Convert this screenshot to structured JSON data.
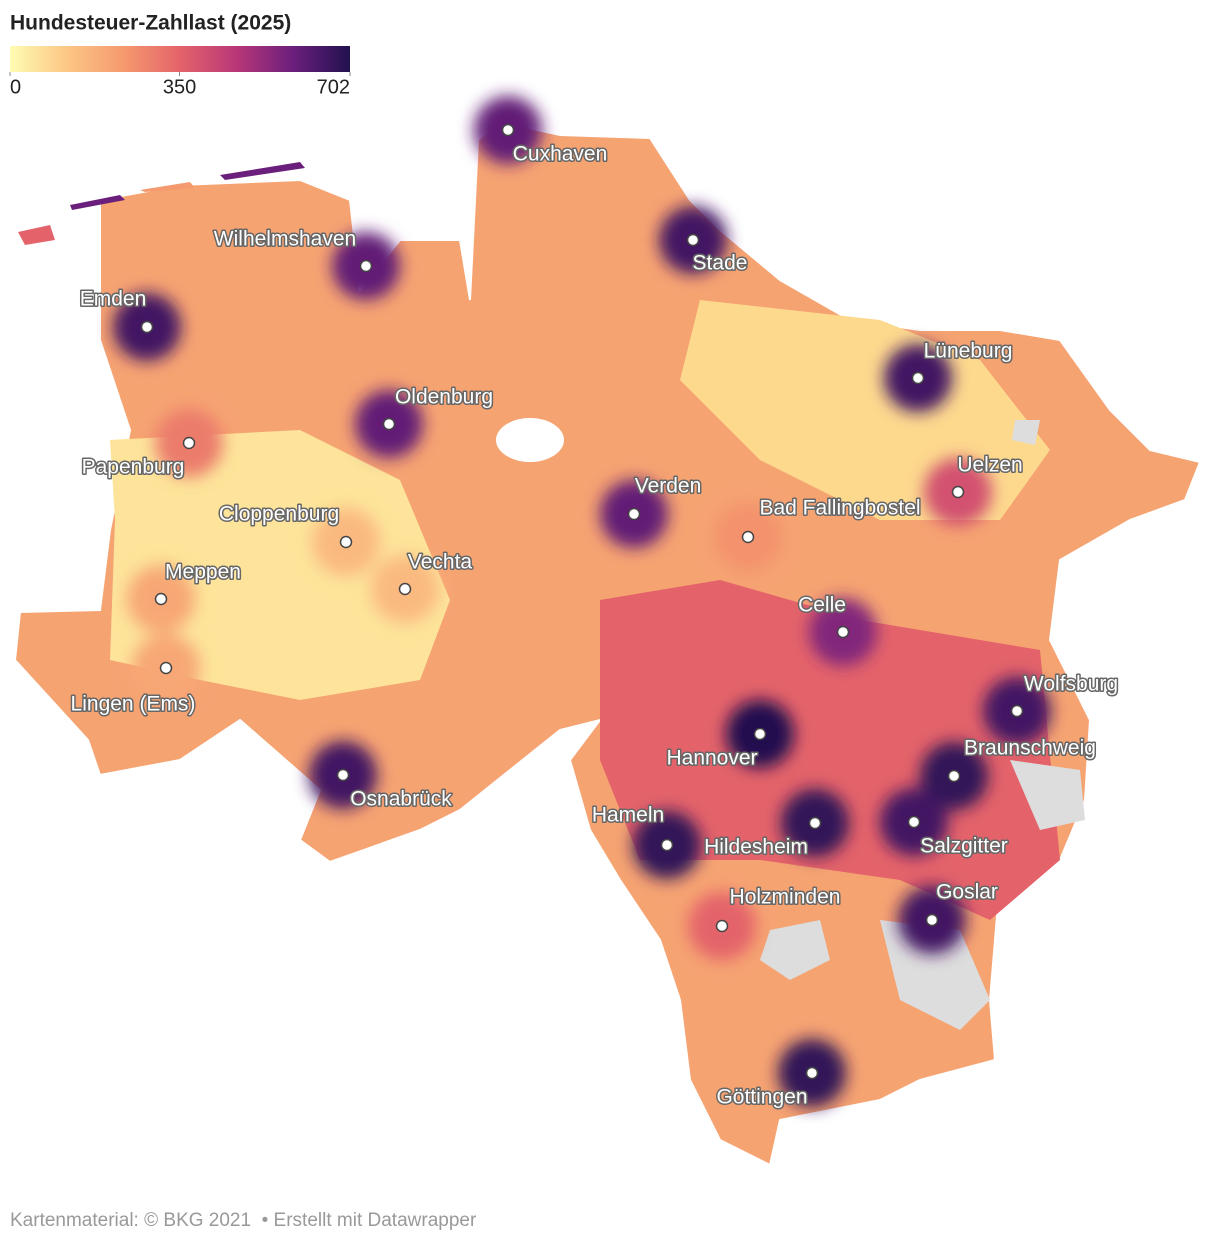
{
  "header": {
    "title": "Hundesteuer-Zahllast (2025)"
  },
  "legend": {
    "range": [
      0,
      702
    ],
    "ticks": [
      0,
      350,
      702
    ],
    "colors": [
      "#fefcb1",
      "#fcc785",
      "#f59a6e",
      "#e4636a",
      "#b83778",
      "#6b1f7c",
      "#221150"
    ]
  },
  "cities": [
    {
      "label": "Cuxhaven",
      "value": 600
    },
    {
      "label": "Wilhelmshaven",
      "value": 600
    },
    {
      "label": "Stade",
      "value": 650
    },
    {
      "label": "Emden",
      "value": 650
    },
    {
      "label": "Lüneburg",
      "value": 650
    },
    {
      "label": "Oldenburg",
      "value": 600
    },
    {
      "label": "Papenburg",
      "value": 300
    },
    {
      "label": "Uelzen",
      "value": 400
    },
    {
      "label": "Verden",
      "value": 600
    },
    {
      "label": "Bad Fallingbostel",
      "value": 250
    },
    {
      "label": "Cloppenburg",
      "value": 150
    },
    {
      "label": "Vechta",
      "value": 150
    },
    {
      "label": "Meppen",
      "value": 200
    },
    {
      "label": "Celle",
      "value": 550
    },
    {
      "label": "Lingen (Ems)",
      "value": 200
    },
    {
      "label": "Wolfsburg",
      "value": 650
    },
    {
      "label": "Hannover",
      "value": 702
    },
    {
      "label": "Braunschweig",
      "value": 680
    },
    {
      "label": "Osnabrück",
      "value": 650
    },
    {
      "label": "Hameln",
      "value": 680
    },
    {
      "label": "Hildesheim",
      "value": 680
    },
    {
      "label": "Salzgitter",
      "value": 650
    },
    {
      "label": "Goslar",
      "value": 650
    },
    {
      "label": "Holzminden",
      "value": 350
    },
    {
      "label": "Göttingen",
      "value": 680
    }
  ],
  "footer": {
    "source": "Kartenmaterial: © BKG 2021",
    "credit": "• Erstellt mit Datawrapper"
  }
}
